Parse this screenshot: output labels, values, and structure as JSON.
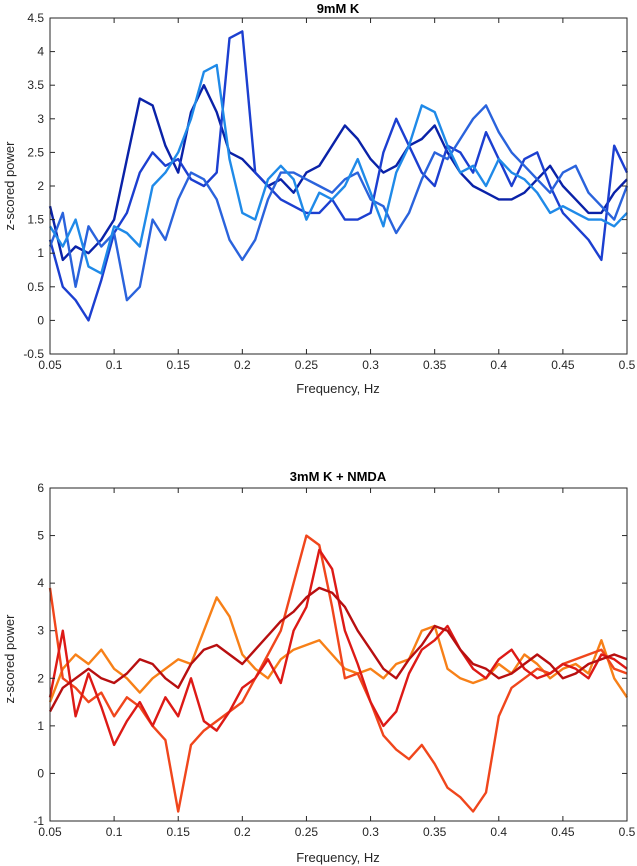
{
  "chart_data": [
    {
      "type": "line",
      "title": "9mM K",
      "xlabel": "Frequency, Hz",
      "ylabel": "z-scored power",
      "xlim": [
        0.05,
        0.5
      ],
      "ylim": [
        -0.5,
        4.5
      ],
      "xticks": [
        0.05,
        0.1,
        0.15,
        0.2,
        0.25,
        0.3,
        0.35,
        0.4,
        0.45,
        0.5
      ],
      "xtick_labels": [
        "0.05",
        "0.1",
        "0.15",
        "0.2",
        "0.25",
        "0.3",
        "0.35",
        "0.4",
        "0.45",
        "0.5"
      ],
      "yticks": [
        -0.5,
        0,
        0.5,
        1,
        1.5,
        2,
        2.5,
        3,
        3.5,
        4,
        4.5
      ],
      "ytick_labels": [
        "-0.5",
        "0",
        "0.5",
        "1",
        "1.5",
        "2",
        "2.5",
        "3",
        "3.5",
        "4",
        "4.5"
      ],
      "grid": false,
      "series": [
        {
          "color": "#0a22a8",
          "x": [
            0.05,
            0.06,
            0.07,
            0.08,
            0.09,
            0.1,
            0.11,
            0.12,
            0.13,
            0.14,
            0.15,
            0.16,
            0.17,
            0.18,
            0.19,
            0.2,
            0.21,
            0.22,
            0.23,
            0.24,
            0.25,
            0.26,
            0.27,
            0.28,
            0.29,
            0.3,
            0.31,
            0.32,
            0.33,
            0.34,
            0.35,
            0.36,
            0.37,
            0.38,
            0.39,
            0.4,
            0.41,
            0.42,
            0.43,
            0.44,
            0.45,
            0.46,
            0.47,
            0.48,
            0.49,
            0.5
          ],
          "values": [
            1.7,
            0.9,
            1.1,
            1.0,
            1.2,
            1.5,
            2.4,
            3.3,
            3.2,
            2.6,
            2.2,
            3.1,
            3.5,
            3.1,
            2.5,
            2.4,
            2.2,
            2.0,
            2.1,
            1.9,
            2.2,
            2.3,
            2.6,
            2.9,
            2.7,
            2.4,
            2.2,
            2.3,
            2.6,
            2.7,
            2.9,
            2.5,
            2.2,
            2.0,
            1.9,
            1.8,
            1.8,
            1.9,
            2.1,
            2.3,
            2.0,
            1.8,
            1.6,
            1.6,
            1.9,
            2.1
          ]
        },
        {
          "color": "#1c3fd0",
          "x": [
            0.05,
            0.06,
            0.07,
            0.08,
            0.09,
            0.1,
            0.11,
            0.12,
            0.13,
            0.14,
            0.15,
            0.16,
            0.17,
            0.18,
            0.19,
            0.2,
            0.21,
            0.22,
            0.23,
            0.24,
            0.25,
            0.26,
            0.27,
            0.28,
            0.29,
            0.3,
            0.31,
            0.32,
            0.33,
            0.34,
            0.35,
            0.36,
            0.37,
            0.38,
            0.39,
            0.4,
            0.41,
            0.42,
            0.43,
            0.44,
            0.45,
            0.46,
            0.47,
            0.48,
            0.49,
            0.5
          ],
          "values": [
            1.2,
            0.5,
            0.3,
            0.0,
            0.6,
            1.3,
            1.6,
            2.2,
            2.5,
            2.3,
            2.4,
            2.1,
            2.0,
            2.2,
            4.2,
            4.3,
            2.2,
            2.0,
            1.8,
            1.7,
            1.6,
            1.6,
            1.8,
            1.5,
            1.5,
            1.6,
            2.5,
            3.0,
            2.6,
            2.2,
            2.0,
            2.6,
            2.5,
            2.2,
            2.8,
            2.4,
            2.0,
            2.4,
            2.5,
            2.0,
            1.6,
            1.4,
            1.2,
            0.9,
            2.6,
            2.2
          ]
        },
        {
          "color": "#2a63dc",
          "x": [
            0.05,
            0.06,
            0.07,
            0.08,
            0.09,
            0.1,
            0.11,
            0.12,
            0.13,
            0.14,
            0.15,
            0.16,
            0.17,
            0.18,
            0.19,
            0.2,
            0.21,
            0.22,
            0.23,
            0.24,
            0.25,
            0.26,
            0.27,
            0.28,
            0.29,
            0.3,
            0.31,
            0.32,
            0.33,
            0.34,
            0.35,
            0.36,
            0.37,
            0.38,
            0.39,
            0.4,
            0.41,
            0.42,
            0.43,
            0.44,
            0.45,
            0.46,
            0.47,
            0.48,
            0.49,
            0.5
          ],
          "values": [
            1.1,
            1.6,
            0.5,
            1.4,
            1.1,
            1.3,
            0.3,
            0.5,
            1.5,
            1.2,
            1.8,
            2.2,
            2.1,
            1.8,
            1.2,
            0.9,
            1.2,
            1.8,
            2.2,
            2.2,
            2.1,
            2.0,
            1.9,
            2.1,
            2.2,
            1.8,
            1.7,
            1.3,
            1.6,
            2.1,
            2.5,
            2.4,
            2.7,
            3.0,
            3.2,
            2.8,
            2.5,
            2.3,
            2.1,
            1.9,
            2.2,
            2.3,
            1.9,
            1.7,
            1.5,
            2.0
          ]
        },
        {
          "color": "#1f8ae8",
          "x": [
            0.05,
            0.06,
            0.07,
            0.08,
            0.09,
            0.1,
            0.11,
            0.12,
            0.13,
            0.14,
            0.15,
            0.16,
            0.17,
            0.18,
            0.19,
            0.2,
            0.21,
            0.22,
            0.23,
            0.24,
            0.25,
            0.26,
            0.27,
            0.28,
            0.29,
            0.3,
            0.31,
            0.32,
            0.33,
            0.34,
            0.35,
            0.36,
            0.37,
            0.38,
            0.39,
            0.4,
            0.41,
            0.42,
            0.43,
            0.44,
            0.45,
            0.46,
            0.47,
            0.48,
            0.49,
            0.5
          ],
          "values": [
            1.4,
            1.1,
            1.5,
            0.8,
            0.7,
            1.4,
            1.3,
            1.1,
            2.0,
            2.2,
            2.5,
            3.0,
            3.7,
            3.8,
            2.4,
            1.6,
            1.5,
            2.1,
            2.3,
            2.1,
            1.5,
            1.9,
            1.8,
            2.0,
            2.4,
            1.9,
            1.4,
            2.2,
            2.6,
            3.2,
            3.1,
            2.6,
            2.2,
            2.3,
            2.0,
            2.4,
            2.2,
            2.1,
            1.9,
            1.6,
            1.7,
            1.6,
            1.5,
            1.5,
            1.4,
            1.6
          ]
        }
      ]
    },
    {
      "type": "line",
      "title": "3mM K + NMDA",
      "xlabel": "Frequency, Hz",
      "ylabel": "z-scored power",
      "xlim": [
        0.05,
        0.5
      ],
      "ylim": [
        -1,
        6
      ],
      "xticks": [
        0.05,
        0.1,
        0.15,
        0.2,
        0.25,
        0.3,
        0.35,
        0.4,
        0.45,
        0.5
      ],
      "xtick_labels": [
        "0.05",
        "0.1",
        "0.15",
        "0.2",
        "0.25",
        "0.3",
        "0.35",
        "0.4",
        "0.45",
        "0.5"
      ],
      "yticks": [
        -1,
        0,
        1,
        2,
        3,
        4,
        5,
        6
      ],
      "ytick_labels": [
        "-1",
        "0",
        "1",
        "2",
        "3",
        "4",
        "5",
        "6"
      ],
      "grid": false,
      "series": [
        {
          "color": "#f78018",
          "x": [
            0.05,
            0.06,
            0.07,
            0.08,
            0.09,
            0.1,
            0.11,
            0.12,
            0.13,
            0.14,
            0.15,
            0.16,
            0.17,
            0.18,
            0.19,
            0.2,
            0.21,
            0.22,
            0.23,
            0.24,
            0.25,
            0.26,
            0.27,
            0.28,
            0.29,
            0.3,
            0.31,
            0.32,
            0.33,
            0.34,
            0.35,
            0.36,
            0.37,
            0.38,
            0.39,
            0.4,
            0.41,
            0.42,
            0.43,
            0.44,
            0.45,
            0.46,
            0.47,
            0.48,
            0.49,
            0.5
          ],
          "values": [
            1.5,
            2.2,
            2.5,
            2.3,
            2.6,
            2.2,
            2.0,
            1.7,
            2.0,
            2.2,
            2.4,
            2.3,
            3.0,
            3.7,
            3.3,
            2.5,
            2.2,
            2.0,
            2.4,
            2.6,
            2.7,
            2.8,
            2.5,
            2.2,
            2.1,
            2.2,
            2.0,
            2.3,
            2.4,
            3.0,
            3.1,
            2.2,
            2.0,
            1.9,
            2.0,
            2.3,
            2.1,
            2.5,
            2.3,
            2.0,
            2.2,
            2.3,
            2.1,
            2.8,
            2.0,
            1.6
          ]
        },
        {
          "color": "#f0461c",
          "x": [
            0.05,
            0.06,
            0.07,
            0.08,
            0.09,
            0.1,
            0.11,
            0.12,
            0.13,
            0.14,
            0.15,
            0.16,
            0.17,
            0.18,
            0.19,
            0.2,
            0.21,
            0.22,
            0.23,
            0.24,
            0.25,
            0.26,
            0.27,
            0.28,
            0.29,
            0.3,
            0.31,
            0.32,
            0.33,
            0.34,
            0.35,
            0.36,
            0.37,
            0.38,
            0.39,
            0.4,
            0.41,
            0.42,
            0.43,
            0.44,
            0.45,
            0.46,
            0.47,
            0.48,
            0.49,
            0.5
          ],
          "values": [
            3.9,
            2.0,
            1.8,
            1.5,
            1.7,
            1.2,
            1.6,
            1.4,
            1.0,
            0.7,
            -0.8,
            0.6,
            0.9,
            1.1,
            1.3,
            1.5,
            2.0,
            2.5,
            3.0,
            4.0,
            5.0,
            4.8,
            3.5,
            2.0,
            2.1,
            1.5,
            0.8,
            0.5,
            0.3,
            0.6,
            0.2,
            -0.3,
            -0.5,
            -0.8,
            -0.4,
            1.2,
            1.8,
            2.0,
            2.2,
            2.1,
            2.3,
            2.4,
            2.5,
            2.6,
            2.2,
            2.1
          ]
        },
        {
          "color": "#dd1a16",
          "x": [
            0.05,
            0.06,
            0.07,
            0.08,
            0.09,
            0.1,
            0.11,
            0.12,
            0.13,
            0.14,
            0.15,
            0.16,
            0.17,
            0.18,
            0.19,
            0.2,
            0.21,
            0.22,
            0.23,
            0.24,
            0.25,
            0.26,
            0.27,
            0.28,
            0.29,
            0.3,
            0.31,
            0.32,
            0.33,
            0.34,
            0.35,
            0.36,
            0.37,
            0.38,
            0.39,
            0.4,
            0.41,
            0.42,
            0.43,
            0.44,
            0.45,
            0.46,
            0.47,
            0.48,
            0.49,
            0.5
          ],
          "values": [
            1.6,
            3.0,
            1.2,
            2.1,
            1.4,
            0.6,
            1.1,
            1.5,
            1.0,
            1.6,
            1.2,
            2.0,
            1.1,
            0.9,
            1.3,
            1.8,
            2.0,
            2.4,
            1.9,
            3.0,
            3.5,
            4.7,
            4.3,
            3.0,
            2.3,
            1.5,
            1.0,
            1.3,
            2.1,
            2.6,
            2.8,
            3.1,
            2.6,
            2.2,
            2.0,
            2.4,
            2.6,
            2.2,
            2.0,
            2.1,
            2.3,
            2.2,
            2.0,
            2.5,
            2.4,
            2.2
          ]
        },
        {
          "color": "#b80f10",
          "x": [
            0.05,
            0.06,
            0.07,
            0.08,
            0.09,
            0.1,
            0.11,
            0.12,
            0.13,
            0.14,
            0.15,
            0.16,
            0.17,
            0.18,
            0.19,
            0.2,
            0.21,
            0.22,
            0.23,
            0.24,
            0.25,
            0.26,
            0.27,
            0.28,
            0.29,
            0.3,
            0.31,
            0.32,
            0.33,
            0.34,
            0.35,
            0.36,
            0.37,
            0.38,
            0.39,
            0.4,
            0.41,
            0.42,
            0.43,
            0.44,
            0.45,
            0.46,
            0.47,
            0.48,
            0.49,
            0.5
          ],
          "values": [
            1.3,
            1.8,
            2.0,
            2.2,
            2.0,
            1.9,
            2.1,
            2.4,
            2.3,
            2.0,
            1.8,
            2.3,
            2.6,
            2.7,
            2.5,
            2.3,
            2.6,
            2.9,
            3.2,
            3.4,
            3.7,
            3.9,
            3.8,
            3.5,
            3.0,
            2.6,
            2.2,
            2.0,
            2.4,
            2.7,
            3.1,
            3.0,
            2.6,
            2.3,
            2.2,
            2.0,
            2.1,
            2.3,
            2.5,
            2.3,
            2.0,
            2.1,
            2.3,
            2.4,
            2.5,
            2.4
          ]
        }
      ]
    }
  ]
}
